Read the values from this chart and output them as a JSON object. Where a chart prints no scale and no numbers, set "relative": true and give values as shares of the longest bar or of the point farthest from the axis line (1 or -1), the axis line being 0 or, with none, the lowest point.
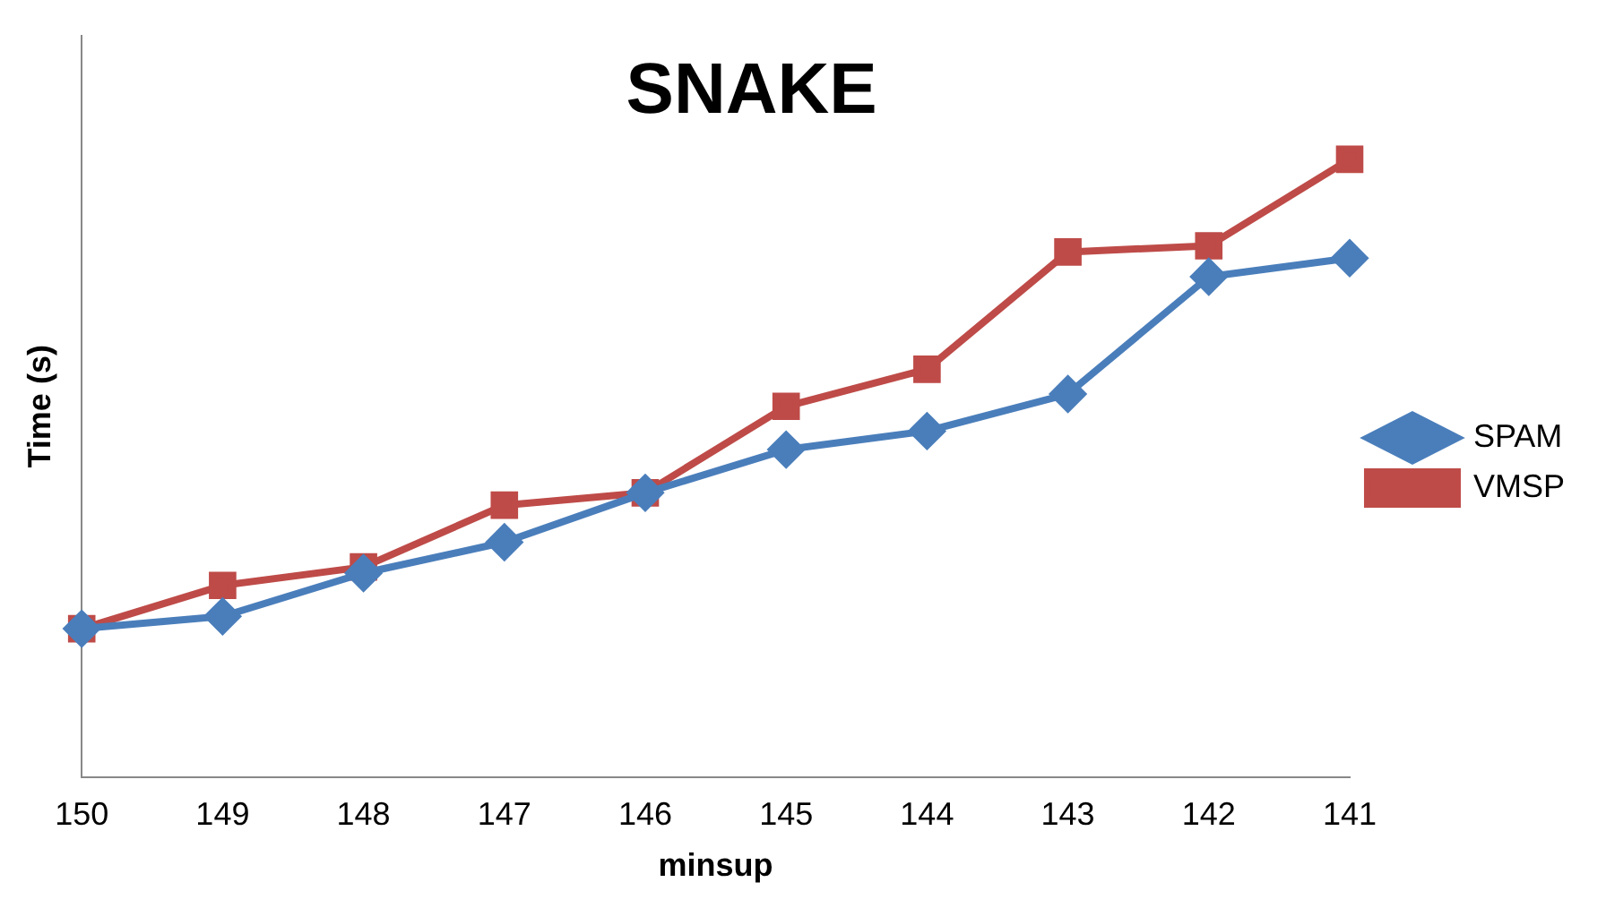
{
  "chart_data": {
    "type": "line",
    "title": "SNAKE",
    "xlabel": "minsup",
    "ylabel": "Time (s)",
    "categories": [
      "150",
      "149",
      "148",
      "147",
      "146",
      "145",
      "144",
      "143",
      "142",
      "141"
    ],
    "relative": true,
    "series": [
      {
        "name": "SPAM",
        "color": "#4a7ebb",
        "marker": "diamond",
        "values": [
          0.24,
          0.26,
          0.33,
          0.38,
          0.46,
          0.53,
          0.56,
          0.62,
          0.81,
          0.84
        ]
      },
      {
        "name": "VMSP",
        "color": "#be4b48",
        "marker": "square",
        "values": [
          0.24,
          0.31,
          0.34,
          0.44,
          0.46,
          0.6,
          0.66,
          0.85,
          0.86,
          1
        ]
      }
    ],
    "legend": "right"
  }
}
